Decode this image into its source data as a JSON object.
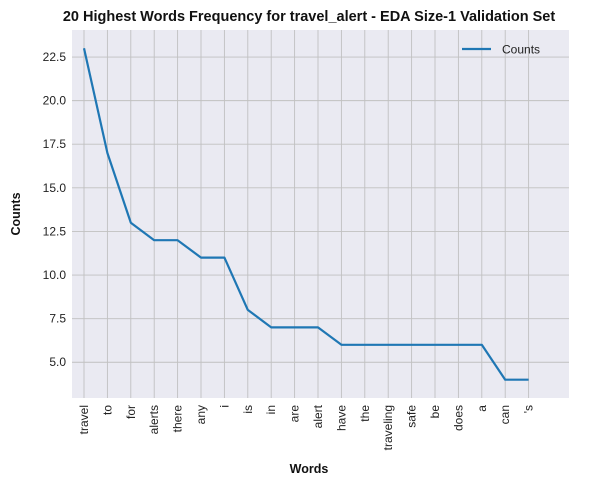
{
  "chart_data": {
    "type": "line",
    "title": "20 Highest Words Frequency for travel_alert - EDA Size-1 Validation Set",
    "xlabel": "Words",
    "ylabel": "Counts",
    "categories": [
      "travel",
      "to",
      "for",
      "alerts",
      "there",
      "any",
      "i",
      "is",
      "in",
      "are",
      "alert",
      "have",
      "the",
      "traveling",
      "safe",
      "be",
      "does",
      "a",
      "can",
      "'s"
    ],
    "series": [
      {
        "name": "Counts",
        "values": [
          23,
          17,
          13,
          12,
          12,
          11,
          11,
          8,
          7,
          7,
          7,
          6,
          6,
          6,
          6,
          6,
          6,
          6,
          4,
          4
        ]
      }
    ],
    "ylim": [
      2.95,
      24.05
    ],
    "yticks": [
      5.0,
      7.5,
      10.0,
      12.5,
      15.0,
      17.5,
      20.0,
      22.5
    ],
    "ytick_labels": [
      "5.0",
      "7.5",
      "10.0",
      "12.5",
      "15.0",
      "17.5",
      "20.0",
      "22.5"
    ],
    "grid": true,
    "legend_position": "top-right",
    "colors": {
      "line": "#1f77b4",
      "plot_background": "#eaeaf2",
      "grid": "#c0c0c0"
    }
  }
}
